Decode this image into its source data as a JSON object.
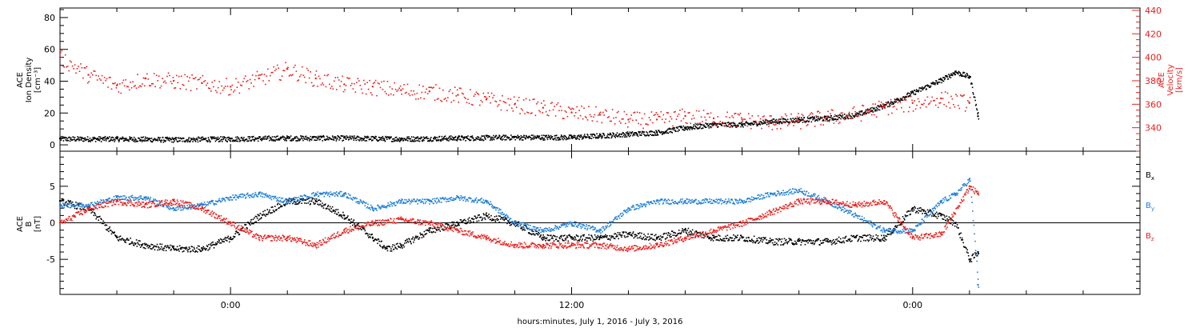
{
  "colors": {
    "black": "#000000",
    "red": "#e8201c",
    "blue": "#1f7fd6"
  },
  "chart_data": [
    {
      "type": "scatter",
      "panel": "top",
      "ylabel_lines": [
        "ACE",
        "Ion Density",
        "[cm⁻³]"
      ],
      "y2label_lines": [
        "ACE",
        "Velocity",
        "[km/s]"
      ],
      "ylim": [
        -4,
        86
      ],
      "y2lim": [
        320,
        442
      ],
      "yticks": [
        0,
        20,
        40,
        60,
        80
      ],
      "y2ticks": [
        340,
        360,
        380,
        400,
        420,
        440
      ],
      "series": [
        {
          "key": "density",
          "axis": "left",
          "color": "black",
          "x": [
            -6,
            -4,
            -2,
            0,
            2,
            4,
            6,
            8,
            10,
            12,
            13,
            14,
            15,
            16,
            17,
            18,
            19,
            20,
            21,
            22,
            23,
            24,
            25,
            25.5,
            26,
            26.3
          ],
          "y": [
            4,
            4,
            3.5,
            4,
            4.5,
            4.5,
            4,
            4.5,
            5,
            5,
            6,
            7,
            8,
            11,
            13,
            13,
            15,
            16,
            17,
            19,
            25,
            33,
            41,
            46,
            43,
            18
          ]
        },
        {
          "key": "velocity",
          "axis": "right",
          "color": "red",
          "x": [
            -6,
            -5,
            -4,
            -3,
            -2,
            -1,
            0,
            1,
            2,
            3,
            4,
            5,
            6,
            7,
            8,
            9,
            10,
            11,
            12,
            13,
            14,
            15,
            16,
            17,
            18,
            19,
            20,
            21,
            22,
            23,
            24,
            25,
            26
          ],
          "y": [
            400,
            385,
            376,
            382,
            380,
            378,
            375,
            382,
            390,
            382,
            377,
            375,
            372,
            371,
            368,
            364,
            360,
            357,
            353,
            351,
            347,
            347,
            350,
            348,
            347,
            345,
            346,
            349,
            352,
            358,
            361,
            365,
            361
          ]
        }
      ]
    },
    {
      "type": "scatter",
      "panel": "bottom",
      "ylabel_lines": [
        "ACE",
        "B",
        "[nT]"
      ],
      "ylim": [
        -9.8,
        9.8
      ],
      "yticks": [
        -5,
        0,
        5
      ],
      "zero_line": true,
      "legend_position": "right",
      "series": [
        {
          "key": "bx",
          "name": "B",
          "sub": "x",
          "color": "black",
          "x": [
            -6,
            -5,
            -4,
            -3,
            -2,
            -1,
            0,
            1,
            2,
            3,
            4,
            5,
            5.5,
            6,
            7,
            8,
            9,
            10,
            11,
            12,
            13,
            14,
            15,
            16,
            17,
            18,
            19,
            20,
            21,
            22,
            23,
            24,
            25,
            25.5,
            26,
            26.3
          ],
          "y": [
            3,
            2,
            -2,
            -3,
            -3.5,
            -3.5,
            -2,
            1,
            3,
            3,
            1,
            -2,
            -3.5,
            -3,
            -1,
            0,
            1,
            0,
            -2,
            -2,
            -2,
            -1.5,
            -2,
            -1,
            -2,
            -2,
            -2.5,
            -2.5,
            -2.5,
            -2,
            -2,
            2,
            1,
            0,
            -5,
            -4
          ]
        },
        {
          "key": "by",
          "name": "B",
          "sub": "y",
          "color": "blue",
          "x": [
            -6,
            -5,
            -4,
            -3,
            -2,
            -1,
            0,
            1,
            2,
            3,
            4,
            5,
            6,
            7,
            8,
            9,
            10,
            11,
            12,
            13,
            14,
            15,
            16,
            17,
            18,
            19,
            20,
            21,
            22,
            23,
            24,
            25,
            25.5,
            26,
            26.3
          ],
          "y": [
            2.5,
            2.5,
            3.5,
            3.5,
            2,
            2.5,
            3.5,
            4,
            3,
            4,
            4,
            2,
            3,
            3,
            3.5,
            3,
            0,
            -1,
            0,
            -1,
            2,
            3,
            3,
            3,
            3,
            4,
            4.5,
            3,
            1,
            -1,
            -1,
            3,
            4,
            6,
            -8.5
          ]
        },
        {
          "key": "bz",
          "name": "B",
          "sub": "z",
          "color": "red",
          "x": [
            -6,
            -5,
            -4,
            -3,
            -2,
            -1,
            0,
            1,
            2,
            3,
            4,
            5,
            6,
            7,
            8,
            9,
            10,
            11,
            12,
            13,
            14,
            15,
            16,
            17,
            18,
            19,
            20,
            21,
            22,
            23,
            24,
            25,
            26,
            26.3
          ],
          "y": [
            0,
            2,
            3,
            2.5,
            3,
            2,
            0,
            -2,
            -2,
            -3,
            -1,
            0,
            0.5,
            0,
            -1,
            -2,
            -3,
            -3,
            -3,
            -3,
            -3.5,
            -3,
            -2,
            -1,
            0,
            1.5,
            3,
            3,
            2.5,
            3,
            -2,
            -1.5,
            5,
            4
          ]
        }
      ]
    }
  ],
  "time_axis": {
    "xlim": [
      -6,
      32
    ],
    "label": "hours:minutes, July  1, 2016 - July  3, 2016",
    "major_ticks": [
      0,
      12,
      24
    ],
    "major_labels": [
      "0:00",
      "12:00",
      "0:00"
    ]
  }
}
